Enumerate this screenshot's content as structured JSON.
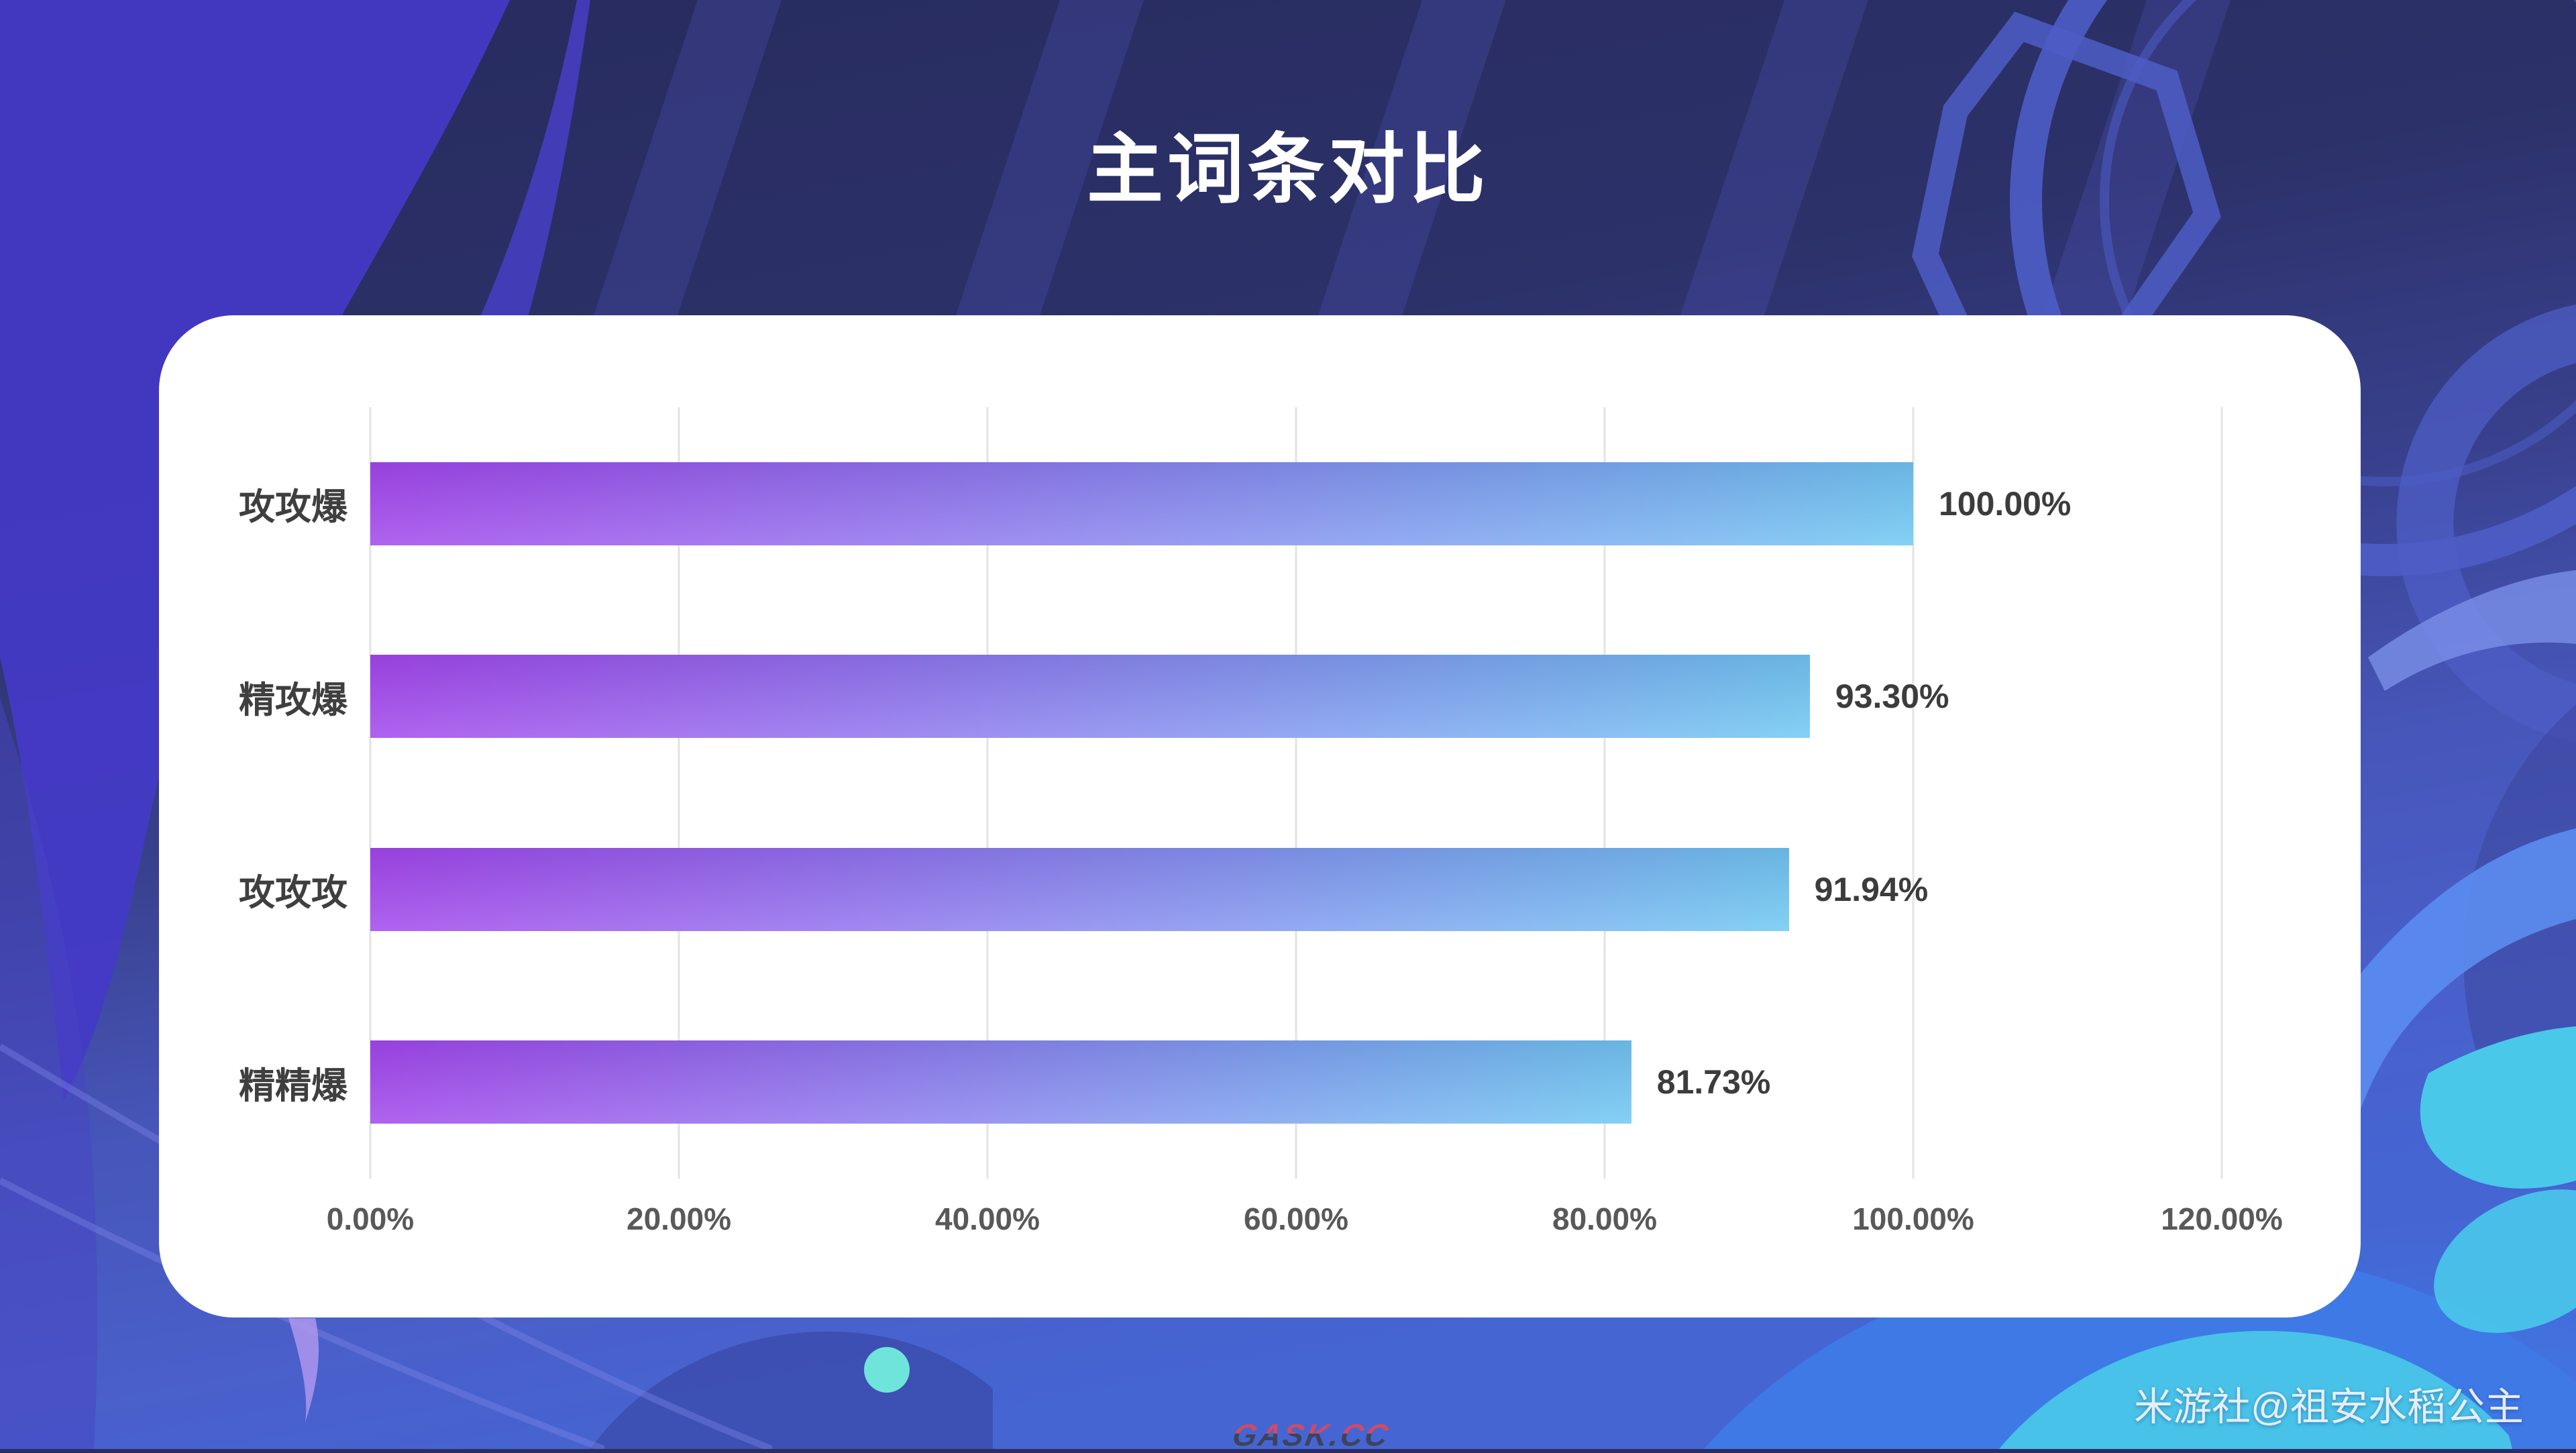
{
  "title": "主词条对比",
  "chart_data": {
    "type": "bar",
    "orientation": "horizontal",
    "title": "主词条对比",
    "categories": [
      "攻攻爆",
      "精攻爆",
      "攻攻攻",
      "精精爆"
    ],
    "values": [
      100.0,
      93.3,
      91.94,
      81.73
    ],
    "value_labels": [
      "100.00%",
      "93.30%",
      "91.94%",
      "81.73%"
    ],
    "x_tick_values": [
      0,
      20,
      40,
      60,
      80,
      100,
      120
    ],
    "x_tick_labels": [
      "0.00%",
      "20.00%",
      "40.00%",
      "60.00%",
      "80.00%",
      "100.00%",
      "120.00%"
    ],
    "xlim": [
      0,
      120
    ],
    "grid": true,
    "legend_position": "none",
    "bar_gradient": {
      "left": "#a348ec",
      "right": "#70c9f2"
    }
  },
  "watermark": "GASK.CC",
  "attribution": "米游社@祖安水稻公主",
  "colors": {
    "panel_bg": "#ffffff",
    "title_text": "#ffffff",
    "category_text": "#3f3f3f",
    "value_text": "#3c3c3c",
    "tick_text": "#595959",
    "gridline": "#e3e3e3",
    "bg_navy": "#2a2e64",
    "bg_indigo": "#4439c8",
    "bg_blue": "#4a5fc8",
    "bg_bright_blue": "#3e79e6",
    "bg_cyan": "#49c8ea"
  }
}
